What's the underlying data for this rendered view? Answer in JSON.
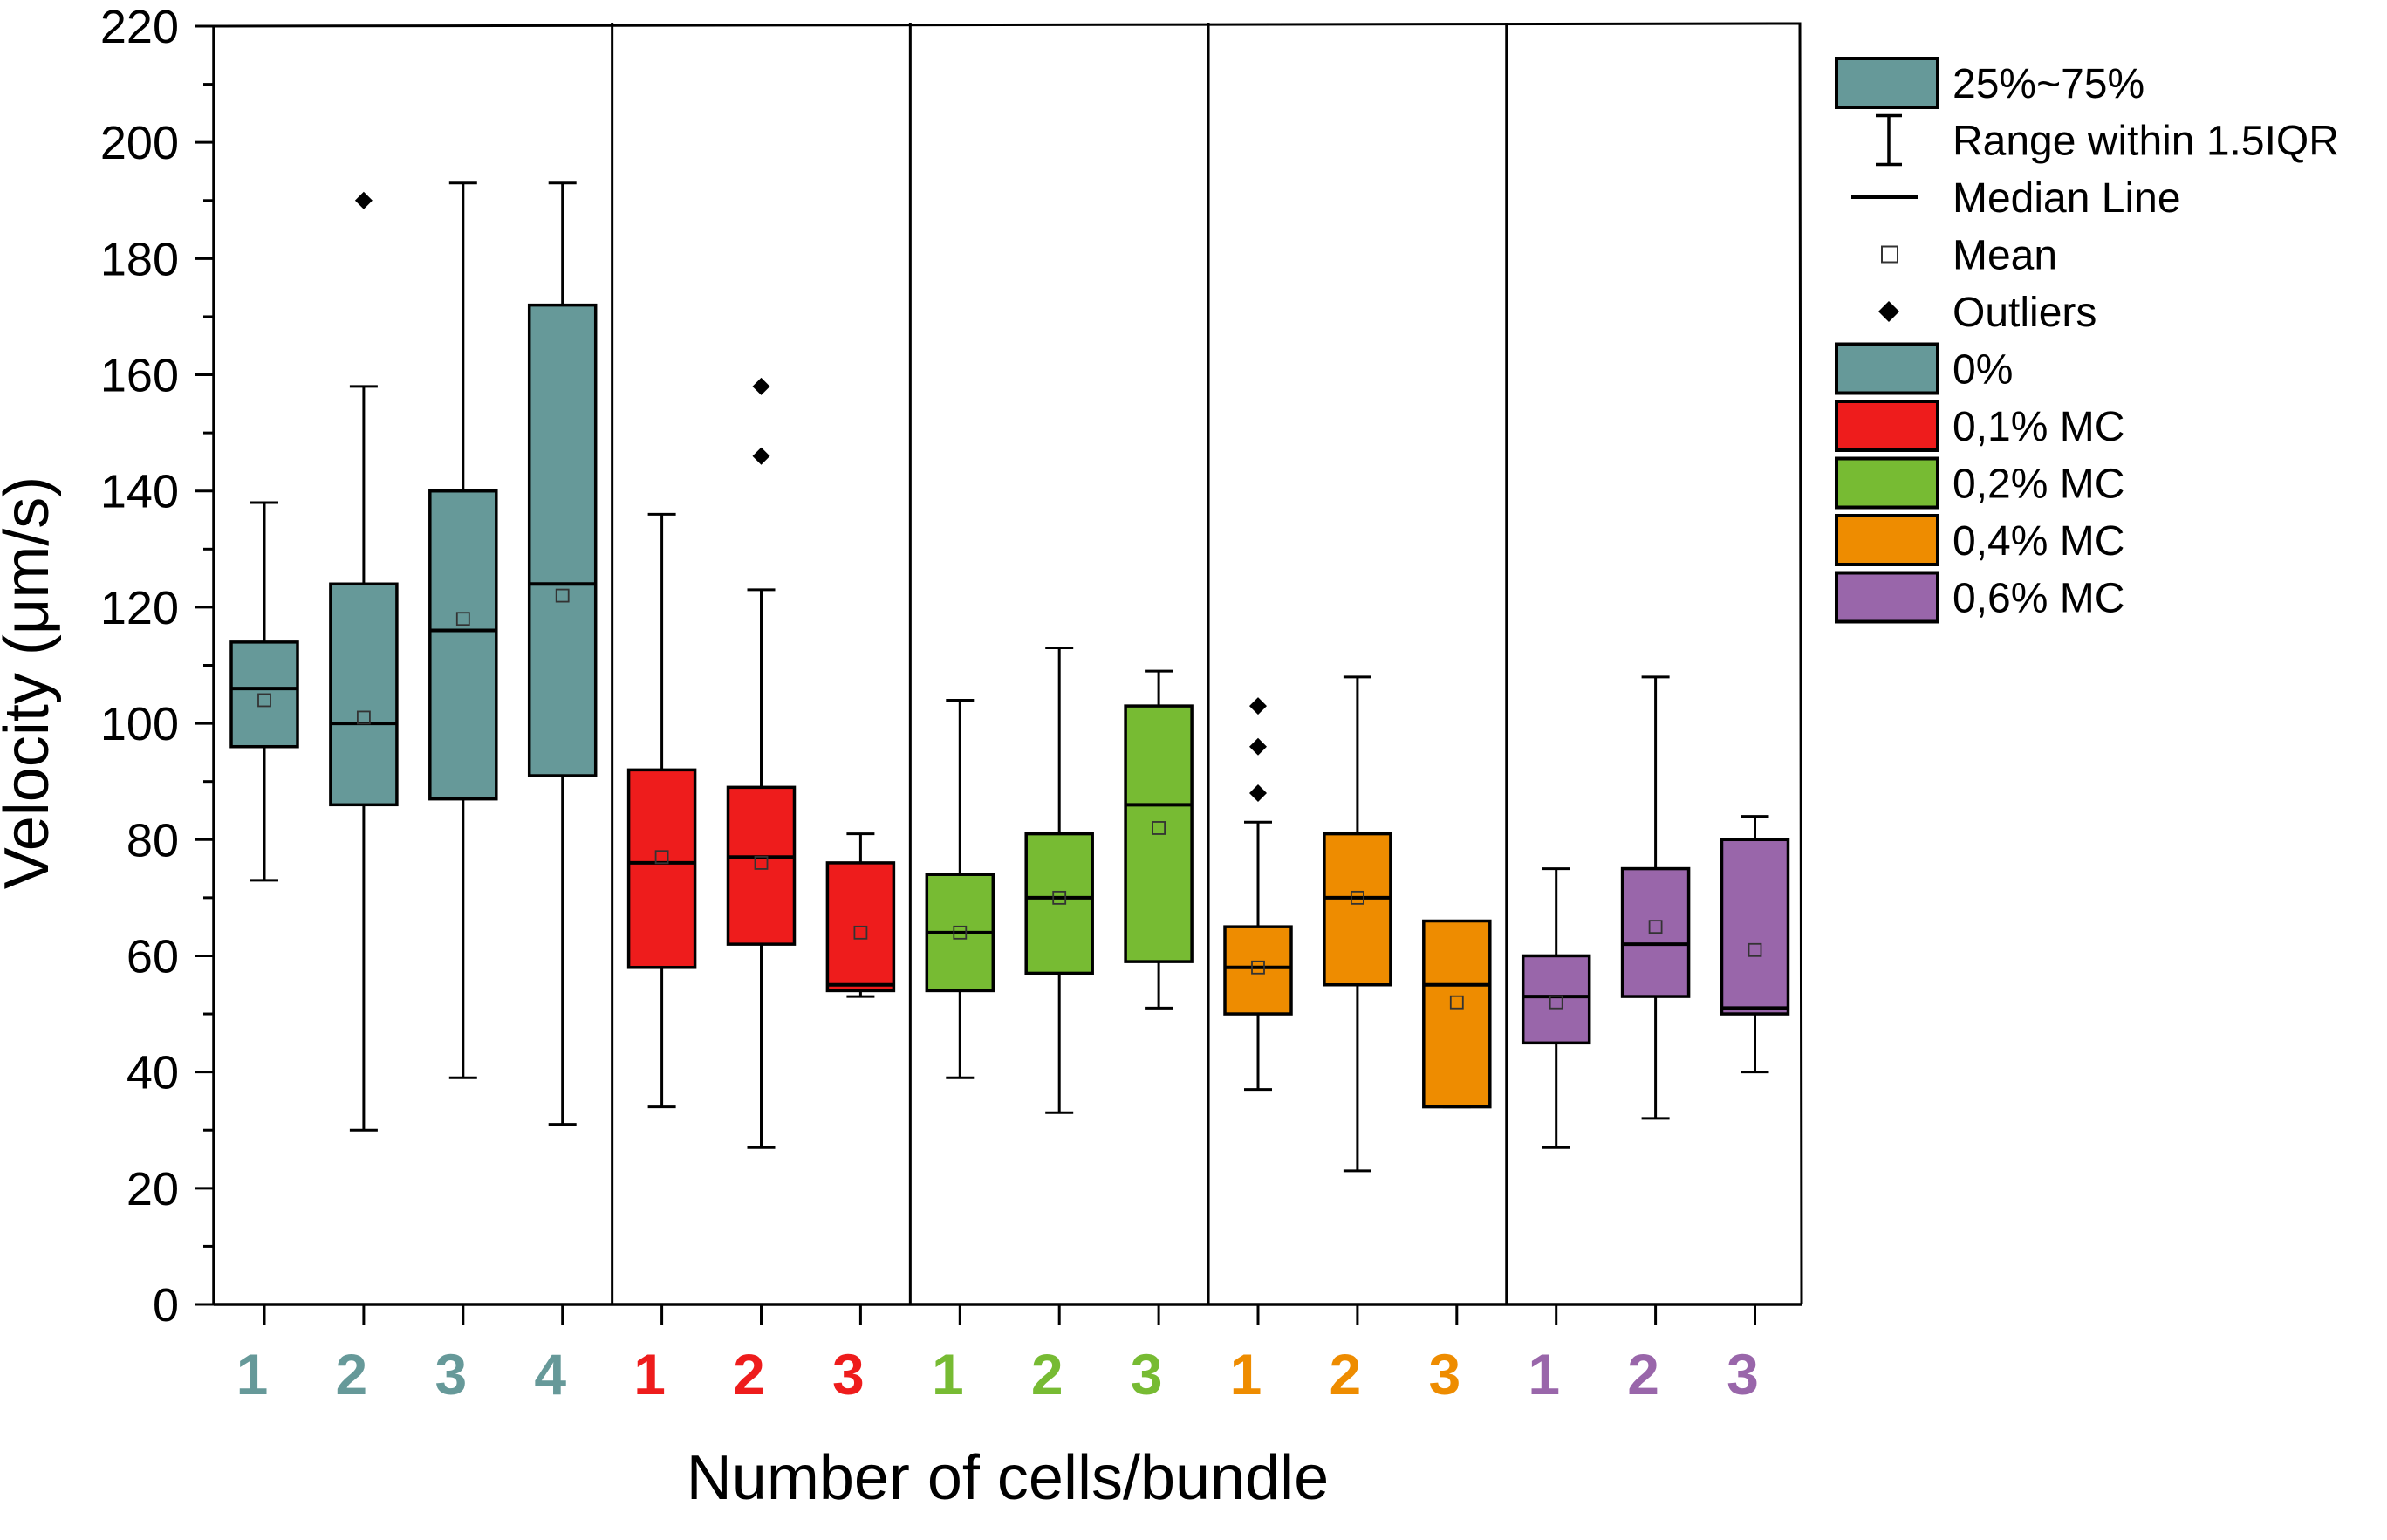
{
  "chart_data": {
    "type": "boxplot",
    "xlabel": "Number of cells/bundle",
    "ylabel": "Velocity (μm/s)",
    "ylim": [
      0,
      220
    ],
    "yticks": [
      0,
      20,
      40,
      60,
      80,
      100,
      120,
      140,
      160,
      180,
      200,
      220
    ],
    "groups": [
      {
        "name": "0%",
        "color": "#669999",
        "boxes": [
          {
            "category": "1",
            "whisker_low": 73,
            "q1": 96,
            "median": 106,
            "q3": 114,
            "whisker_high": 138,
            "mean": 104,
            "outliers": []
          },
          {
            "category": "2",
            "whisker_low": 30,
            "q1": 86,
            "median": 100,
            "q3": 124,
            "whisker_high": 158,
            "mean": 101,
            "outliers": [
              190
            ]
          },
          {
            "category": "3",
            "whisker_low": 39,
            "q1": 87,
            "median": 116,
            "q3": 140,
            "whisker_high": 193,
            "mean": 118,
            "outliers": []
          },
          {
            "category": "4",
            "whisker_low": 31,
            "q1": 91,
            "median": 124,
            "q3": 172,
            "whisker_high": 193,
            "mean": 122,
            "outliers": []
          }
        ]
      },
      {
        "name": "0,1% MC",
        "color": "#ee1c1c",
        "boxes": [
          {
            "category": "1",
            "whisker_low": 34,
            "q1": 58,
            "median": 76,
            "q3": 92,
            "whisker_high": 136,
            "mean": 77,
            "outliers": []
          },
          {
            "category": "2",
            "whisker_low": 27,
            "q1": 62,
            "median": 77,
            "q3": 89,
            "whisker_high": 123,
            "mean": 76,
            "outliers": [
              146,
              158
            ]
          },
          {
            "category": "3",
            "whisker_low": 53,
            "q1": 54,
            "median": 55,
            "q3": 76,
            "whisker_high": 81,
            "mean": 64,
            "outliers": []
          }
        ]
      },
      {
        "name": "0,2% MC",
        "color": "#77bb33",
        "boxes": [
          {
            "category": "1",
            "whisker_low": 39,
            "q1": 54,
            "median": 64,
            "q3": 74,
            "whisker_high": 104,
            "mean": 64,
            "outliers": []
          },
          {
            "category": "2",
            "whisker_low": 33,
            "q1": 57,
            "median": 70,
            "q3": 81,
            "whisker_high": 113,
            "mean": 70,
            "outliers": []
          },
          {
            "category": "3",
            "whisker_low": 51,
            "q1": 59,
            "median": 86,
            "q3": 103,
            "whisker_high": 109,
            "mean": 82,
            "outliers": []
          }
        ]
      },
      {
        "name": "0,4% MC",
        "color": "#ee8c00",
        "boxes": [
          {
            "category": "1",
            "whisker_low": 37,
            "q1": 50,
            "median": 58,
            "q3": 65,
            "whisker_high": 83,
            "mean": 58,
            "outliers": [
              88,
              96,
              103
            ]
          },
          {
            "category": "2",
            "whisker_low": 23,
            "q1": 55,
            "median": 70,
            "q3": 81,
            "whisker_high": 108,
            "mean": 70,
            "outliers": []
          },
          {
            "category": "3",
            "whisker_low": 34,
            "q1": 34,
            "median": 55,
            "q3": 66,
            "whisker_high": 66,
            "mean": 52,
            "outliers": []
          }
        ]
      },
      {
        "name": "0,6% MC",
        "color": "#9966aa",
        "boxes": [
          {
            "category": "1",
            "whisker_low": 27,
            "q1": 45,
            "median": 53,
            "q3": 60,
            "whisker_high": 75,
            "mean": 52,
            "outliers": []
          },
          {
            "category": "2",
            "whisker_low": 32,
            "q1": 53,
            "median": 62,
            "q3": 75,
            "whisker_high": 108,
            "mean": 65,
            "outliers": []
          },
          {
            "category": "3",
            "whisker_low": 40,
            "q1": 50,
            "median": 51,
            "q3": 80,
            "whisker_high": 84,
            "mean": 61,
            "outliers": []
          }
        ]
      }
    ],
    "legend": {
      "position": "right",
      "items": [
        {
          "kind": "box",
          "label": "25%~75%",
          "color": "#669999"
        },
        {
          "kind": "whisker",
          "label": "Range within 1.5IQR"
        },
        {
          "kind": "median",
          "label": "Median Line"
        },
        {
          "kind": "mean",
          "label": "Mean"
        },
        {
          "kind": "outlier",
          "label": "Outliers"
        },
        {
          "kind": "box",
          "label": "0%",
          "color": "#669999"
        },
        {
          "kind": "box",
          "label": "0,1% MC",
          "color": "#ee1c1c"
        },
        {
          "kind": "box",
          "label": "0,2% MC",
          "color": "#77bb33"
        },
        {
          "kind": "box",
          "label": "0,4% MC",
          "color": "#ee8c00"
        },
        {
          "kind": "box",
          "label": "0,6% MC",
          "color": "#9966aa"
        }
      ]
    }
  }
}
